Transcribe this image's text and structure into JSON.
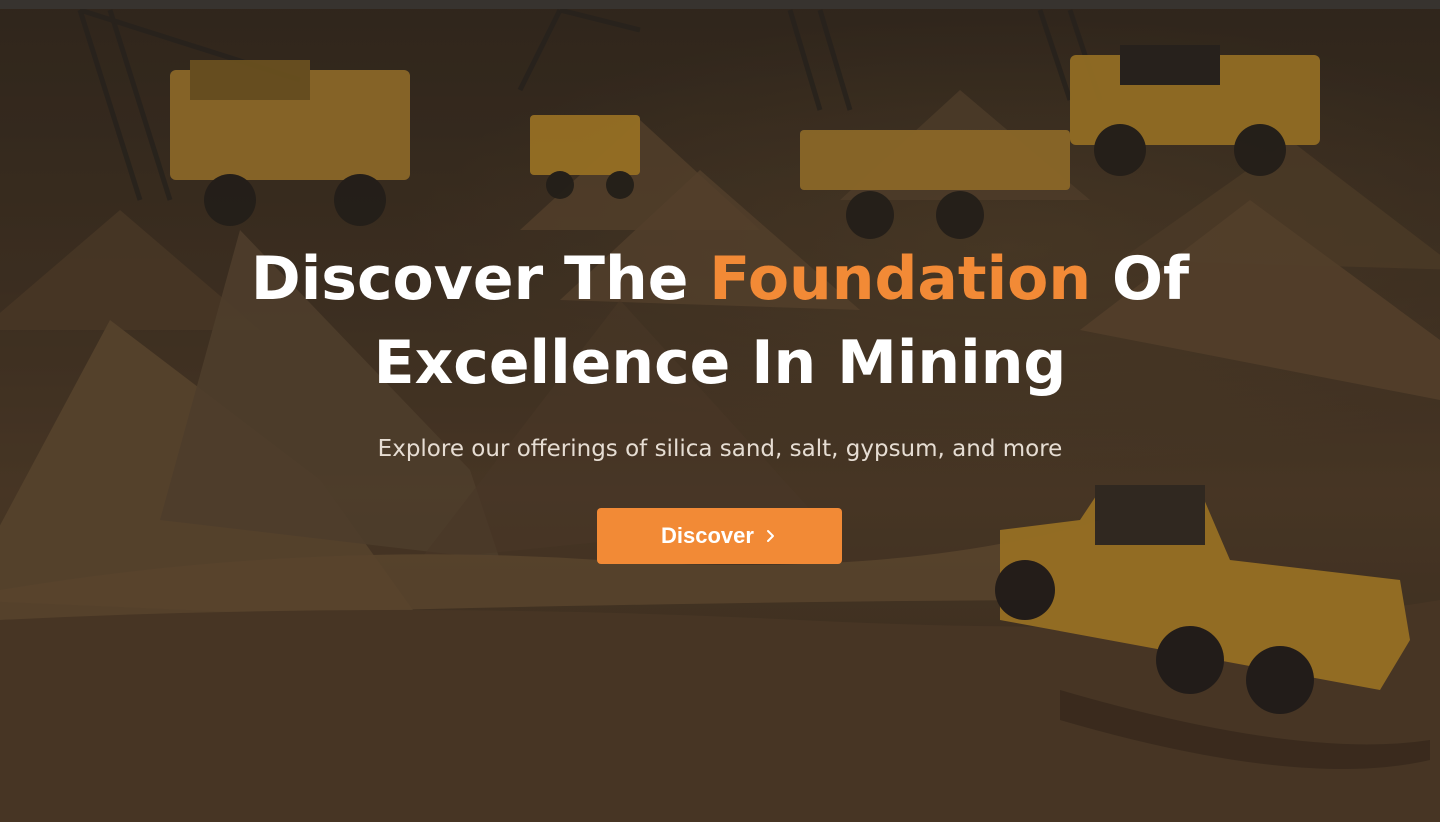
{
  "hero": {
    "headline_part1": "Discover The ",
    "headline_accent": "Foundation",
    "headline_part2": " Of",
    "headline_line2": "Excellence In Mining",
    "subtitle": "Explore our offerings of silica sand, salt, gypsum, and more",
    "cta_label": "Discover",
    "cta_icon": "chevron-right-icon"
  },
  "colors": {
    "accent": "#f28a36",
    "headline": "#ffffff",
    "subtitle": "#e6ddd3",
    "background": "#4a3a2a"
  },
  "background_image": "mining site with sand piles, cranes and yellow dump trucks"
}
